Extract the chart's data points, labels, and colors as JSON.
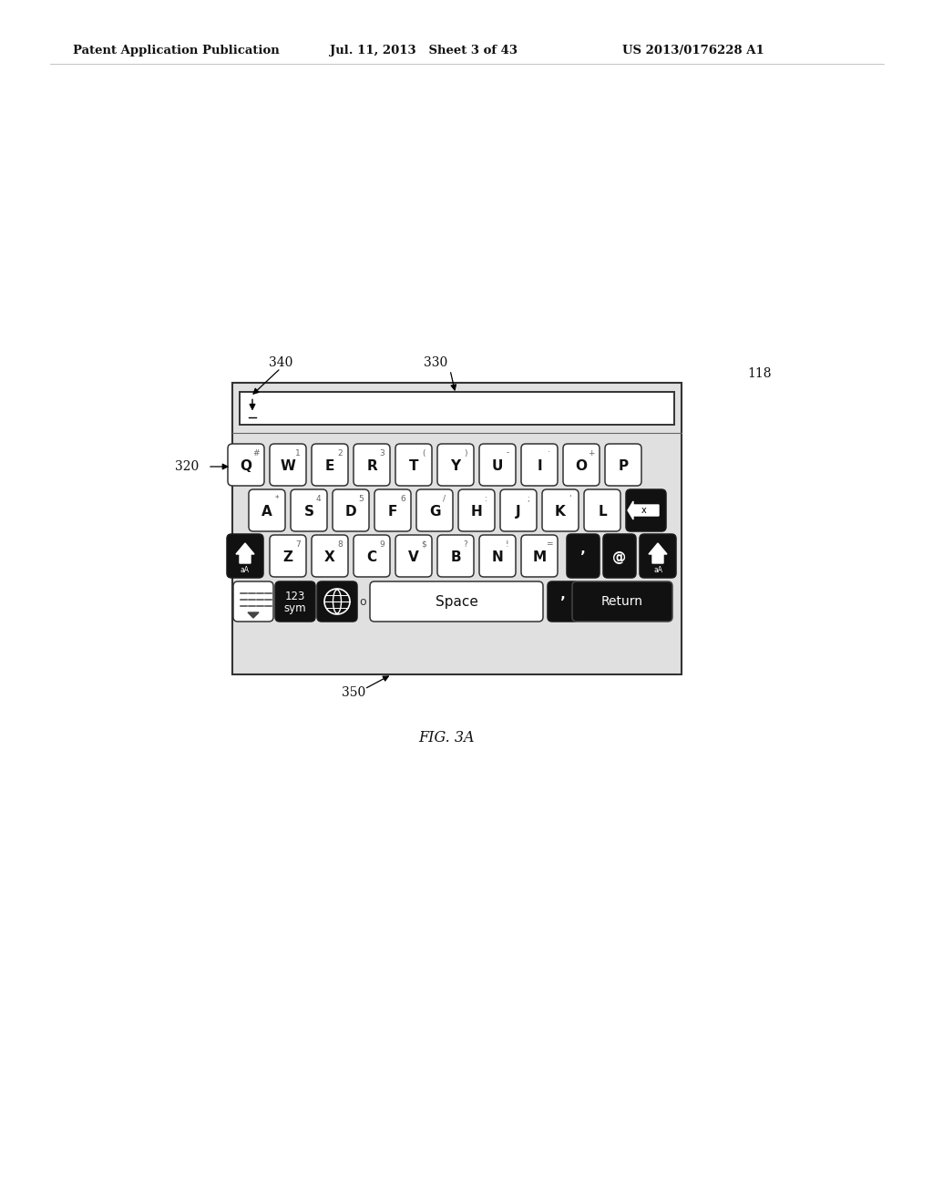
{
  "header_left": "Patent Application Publication",
  "header_mid": "Jul. 11, 2013   Sheet 3 of 43",
  "header_right": "US 2013/0176228 A1",
  "ref_118": "118",
  "fig_caption": "FIG. 3A",
  "lbl_320": "320",
  "lbl_330": "330",
  "lbl_340": "340",
  "lbl_350": "350",
  "row1_main": [
    "Q",
    "W",
    "E",
    "R",
    "T",
    "Y",
    "U",
    "I",
    "O",
    "P"
  ],
  "row1_sub": [
    "#",
    "1",
    "2",
    "3",
    "(",
    ")",
    "-",
    "·",
    "+",
    ""
  ],
  "row2_main": [
    "A",
    "S",
    "D",
    "F",
    "G",
    "H",
    "J",
    "K",
    "L"
  ],
  "row2_sub": [
    "*",
    "4",
    "5",
    "6",
    "/",
    ":",
    ";",
    "'",
    ""
  ],
  "row3_main": [
    "Z",
    "X",
    "C",
    "V",
    "B",
    "N",
    "M"
  ],
  "row3_sub": [
    "7",
    "8",
    "9",
    "$",
    "?",
    "!",
    "="
  ],
  "bg": "#ffffff",
  "key_face": "#ffffff",
  "key_dark_face": "#111111",
  "key_edge": "#333333",
  "kbd_bg": "#e0e0e0"
}
